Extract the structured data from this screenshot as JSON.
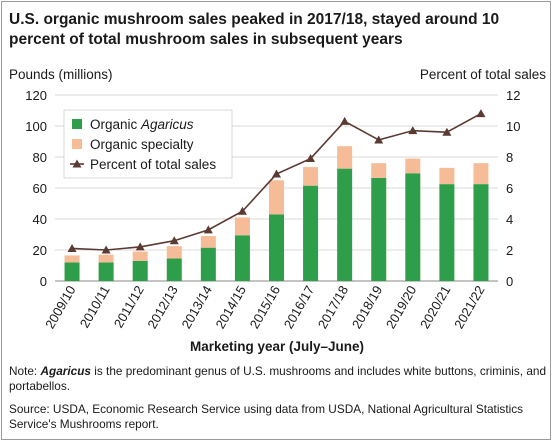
{
  "title": "U.S. organic mushroom sales peaked in 2017/18, stayed around 10 percent of total mushroom sales in subsequent years",
  "colors": {
    "agaricus": "#2e9e4a",
    "specialty": "#f5bc97",
    "line": "#5a3a32",
    "grid": "#d9d9d9"
  },
  "chart_data": {
    "type": "bar",
    "stacked": true,
    "title": "U.S. organic mushroom sales peaked in 2017/18, stayed around 10 percent of total mushroom sales in subsequent years",
    "xlabel": "Marketing year (July–June)",
    "ylabel": "Pounds (millions)",
    "y2label": "Percent of total sales",
    "ylim": [
      0,
      120
    ],
    "yticks": [
      0,
      20,
      40,
      60,
      80,
      100,
      120
    ],
    "y2lim": [
      0,
      12
    ],
    "y2ticks": [
      0,
      2,
      4,
      6,
      8,
      10,
      12
    ],
    "categories": [
      "2009/10",
      "2010/11",
      "2011/12",
      "2012/13",
      "2013/14",
      "2014/15",
      "2015/16",
      "2016/17",
      "2017/18",
      "2018/19",
      "2019/20",
      "2020/21",
      "2021/22"
    ],
    "series": [
      {
        "name": "Organic Agaricus",
        "kind": "bar",
        "values": [
          12,
          12,
          13,
          14.5,
          21.5,
          29.5,
          43,
          61.5,
          72.5,
          66.5,
          69.5,
          62.5,
          62.5
        ]
      },
      {
        "name": "Organic specialty",
        "kind": "bar",
        "values": [
          4.5,
          5,
          6,
          8,
          7.5,
          11.5,
          22,
          12,
          14.5,
          9.5,
          9.5,
          10.5,
          13.5
        ]
      },
      {
        "name": "Percent of total sales",
        "kind": "line",
        "axis": "right",
        "values": [
          2.1,
          2.0,
          2.2,
          2.6,
          3.3,
          4.5,
          6.9,
          7.9,
          10.3,
          9.1,
          9.7,
          9.6,
          10.8
        ]
      }
    ],
    "legend": {
      "position": "top-left",
      "entries": [
        {
          "pre": "Organic ",
          "italic": "Agaricus"
        },
        {
          "pre": "Organic specialty",
          "italic": ""
        },
        {
          "pre": "Percent of total sales",
          "italic": ""
        }
      ]
    },
    "grid": "horizontal"
  },
  "note": {
    "prefix": "Note: ",
    "term": "Agaricus",
    "text": " is the predominant genus of U.S. mushrooms and includes white buttons, criminis, and portabellos."
  },
  "source": "Source: USDA, Economic Research Service using data from USDA, National Agricultural Statistics Service's Mushrooms report."
}
